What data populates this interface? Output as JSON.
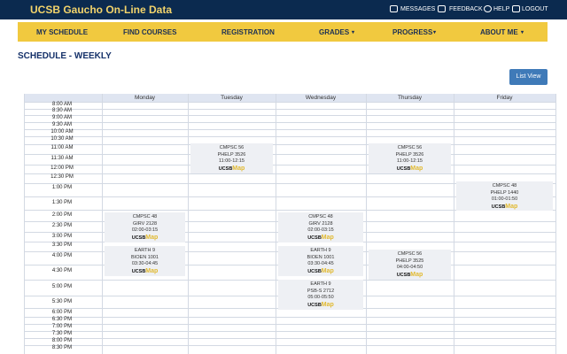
{
  "header": {
    "title": "UCSB Gaucho On-Line Data",
    "links": [
      "MESSAGES",
      "FEEDBACK",
      "HELP",
      "LOGOUT"
    ]
  },
  "nav": [
    "MY SCHEDULE",
    "FIND COURSES",
    "REGISTRATION",
    "GRADES",
    "PROGRESS",
    "ABOUT ME"
  ],
  "page_title": "SCHEDULE - WEEKLY",
  "button": "List View",
  "schedule": {
    "days": [
      "Monday",
      "Tuesday",
      "Wednesday",
      "Thursday",
      "Friday"
    ],
    "times": [
      "8:00 AM",
      "8:30 AM",
      "9:00 AM",
      "9:30 AM",
      "10:00 AM",
      "10:30 AM",
      "11:00 AM",
      "11:30 AM",
      "12:00 PM",
      "12:30 PM",
      "1:00 PM",
      "1:30 PM",
      "2:00 PM",
      "2:30 PM",
      "3:00 PM",
      "3:30 PM",
      "4:00 PM",
      "4:30 PM",
      "5:00 PM",
      "5:30 PM",
      "6:00 PM",
      "6:30 PM",
      "7:00 PM",
      "7:30 PM",
      "8:00 PM",
      "8:30 PM"
    ],
    "events": [
      {
        "course": "CMPSC 56",
        "room": "PHELP 3526",
        "time": "11:00-12:15",
        "map": [
          "UCSB",
          "Map"
        ]
      },
      {
        "course": "CMPSC 56",
        "room": "PHELP 3526",
        "time": "11:00-12:15",
        "map": [
          "UCSB",
          "Map"
        ]
      },
      {
        "course": "CMPSC 48",
        "room": "PHELP 1440",
        "time": "01:00-01:50",
        "map": [
          "UCSB",
          "Map"
        ]
      },
      {
        "course": "CMPSC 48",
        "room": "GIRV 2128",
        "time": "02:00-03:15",
        "map": [
          "UCSB",
          "Map"
        ]
      },
      {
        "course": "CMPSC 48",
        "room": "GIRV 2128",
        "time": "02:00-03:15",
        "map": [
          "UCSB",
          "Map"
        ]
      },
      {
        "course": "EARTH 9",
        "room": "BIOEN 1001",
        "time": "03:30-04:45",
        "map": [
          "UCSB",
          "Map"
        ]
      },
      {
        "course": "EARTH 9",
        "room": "BIOEN 1001",
        "time": "03:30-04:45",
        "map": [
          "UCSB",
          "Map"
        ]
      },
      {
        "course": "CMPSC 56",
        "room": "PHELP 3525",
        "time": "04:00-04:50",
        "map": [
          "UCSB",
          "Map"
        ]
      },
      {
        "course": "EARTH 9",
        "room": "PSB-S 2712",
        "time": "05:00-05:50",
        "map": [
          "UCSB",
          "Map"
        ]
      }
    ]
  }
}
